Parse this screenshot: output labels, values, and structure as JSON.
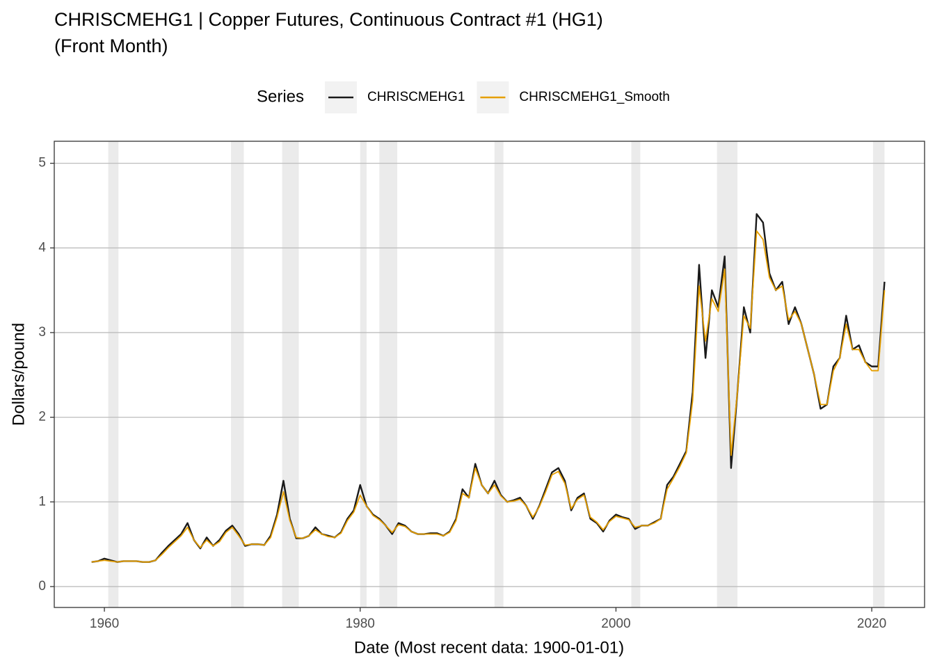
{
  "chart_data": {
    "type": "line",
    "title": [
      "CHRISCMEHG1 | Copper Futures, Continuous Contract #1 (HG1)",
      "(Front Month)"
    ],
    "x_label": "Date (Most recent data: 1900-01-01)",
    "y_label": "Dollars/pound",
    "legend_title": "Series",
    "legend_position": "top",
    "grid": "y",
    "xlim": [
      1956.08,
      2024.13
    ],
    "ylim": [
      -0.247,
      5.26
    ],
    "xticks": [
      1960,
      1980,
      2000,
      2020
    ],
    "yticks": [
      0,
      1,
      2,
      3,
      4,
      5
    ],
    "shaded_regions": [
      [
        1960.3,
        1961.1
      ],
      [
        1969.9,
        1970.9
      ],
      [
        1973.9,
        1975.2
      ],
      [
        1980.0,
        1980.5
      ],
      [
        1981.5,
        1982.9
      ],
      [
        1990.5,
        1991.2
      ],
      [
        2001.2,
        2001.9
      ],
      [
        2007.9,
        2009.5
      ],
      [
        2020.1,
        2021.0
      ]
    ],
    "shaded_color": "#ebebeb",
    "x": [
      1959,
      1959.5,
      1960,
      1960.5,
      1961,
      1961.5,
      1962,
      1962.5,
      1963,
      1963.5,
      1964,
      1964.5,
      1965,
      1965.5,
      1966,
      1966.5,
      1967,
      1967.5,
      1968,
      1968.5,
      1969,
      1969.5,
      1970,
      1970.5,
      1971,
      1971.5,
      1972,
      1972.5,
      1973,
      1973.5,
      1974,
      1974.5,
      1975,
      1975.5,
      1976,
      1976.5,
      1977,
      1977.5,
      1978,
      1978.5,
      1979,
      1979.5,
      1980,
      1980.5,
      1981,
      1981.5,
      1982,
      1982.5,
      1983,
      1983.5,
      1984,
      1984.5,
      1985,
      1985.5,
      1986,
      1986.5,
      1987,
      1987.5,
      1988,
      1988.5,
      1989,
      1989.5,
      1990,
      1990.5,
      1991,
      1991.5,
      1992,
      1992.5,
      1993,
      1993.5,
      1994,
      1994.5,
      1995,
      1995.5,
      1996,
      1996.5,
      1997,
      1997.5,
      1998,
      1998.5,
      1999,
      1999.5,
      2000,
      2000.5,
      2001,
      2001.5,
      2002,
      2002.5,
      2003,
      2003.5,
      2004,
      2004.5,
      2005,
      2005.5,
      2006,
      2006.5,
      2007,
      2007.5,
      2008,
      2008.5,
      2009,
      2009.5,
      2010,
      2010.5,
      2011,
      2011.5,
      2012,
      2012.5,
      2013,
      2013.5,
      2014,
      2014.5,
      2015,
      2015.5,
      2016,
      2016.5,
      2017,
      2017.5,
      2018,
      2018.5,
      2019,
      2019.5,
      2020,
      2020.5,
      2021
    ],
    "series": [
      {
        "name": "CHRISCMEHG1",
        "color": "#1a1a1a",
        "width": 2.4,
        "values": [
          0.29,
          0.3,
          0.33,
          0.31,
          0.29,
          0.3,
          0.3,
          0.3,
          0.29,
          0.29,
          0.31,
          0.4,
          0.48,
          0.55,
          0.62,
          0.75,
          0.55,
          0.45,
          0.58,
          0.48,
          0.55,
          0.66,
          0.72,
          0.62,
          0.48,
          0.5,
          0.5,
          0.49,
          0.6,
          0.85,
          1.25,
          0.8,
          0.57,
          0.57,
          0.6,
          0.7,
          0.62,
          0.6,
          0.58,
          0.64,
          0.8,
          0.9,
          1.2,
          0.95,
          0.85,
          0.8,
          0.72,
          0.62,
          0.75,
          0.72,
          0.65,
          0.62,
          0.62,
          0.63,
          0.63,
          0.6,
          0.65,
          0.8,
          1.15,
          1.05,
          1.45,
          1.2,
          1.1,
          1.25,
          1.08,
          1.0,
          1.02,
          1.05,
          0.95,
          0.8,
          0.95,
          1.15,
          1.35,
          1.4,
          1.25,
          0.9,
          1.05,
          1.1,
          0.8,
          0.75,
          0.65,
          0.78,
          0.85,
          0.82,
          0.8,
          0.68,
          0.72,
          0.72,
          0.76,
          0.8,
          1.2,
          1.3,
          1.45,
          1.6,
          2.3,
          3.8,
          2.7,
          3.5,
          3.3,
          3.9,
          1.4,
          2.3,
          3.3,
          3.0,
          4.4,
          4.3,
          3.7,
          3.5,
          3.6,
          3.1,
          3.3,
          3.1,
          2.8,
          2.5,
          2.1,
          2.15,
          2.6,
          2.7,
          3.2,
          2.8,
          2.85,
          2.65,
          2.6,
          2.6,
          3.6
        ]
      },
      {
        "name": "CHRISCMEHG1_Smooth",
        "color": "#E69F00",
        "width": 1.8,
        "values": [
          0.29,
          0.3,
          0.31,
          0.3,
          0.29,
          0.3,
          0.3,
          0.3,
          0.29,
          0.29,
          0.31,
          0.38,
          0.46,
          0.53,
          0.6,
          0.7,
          0.55,
          0.46,
          0.55,
          0.48,
          0.53,
          0.64,
          0.7,
          0.6,
          0.49,
          0.5,
          0.5,
          0.49,
          0.58,
          0.82,
          1.12,
          0.78,
          0.58,
          0.57,
          0.6,
          0.67,
          0.62,
          0.59,
          0.58,
          0.63,
          0.78,
          0.88,
          1.08,
          0.95,
          0.84,
          0.79,
          0.72,
          0.64,
          0.73,
          0.71,
          0.65,
          0.62,
          0.62,
          0.62,
          0.62,
          0.6,
          0.64,
          0.78,
          1.1,
          1.05,
          1.4,
          1.2,
          1.1,
          1.2,
          1.07,
          1.0,
          1.01,
          1.03,
          0.95,
          0.82,
          0.94,
          1.12,
          1.32,
          1.36,
          1.22,
          0.92,
          1.03,
          1.08,
          0.82,
          0.76,
          0.67,
          0.77,
          0.83,
          0.81,
          0.79,
          0.7,
          0.72,
          0.72,
          0.75,
          0.8,
          1.15,
          1.28,
          1.42,
          1.58,
          2.2,
          3.55,
          2.9,
          3.4,
          3.25,
          3.75,
          1.55,
          2.3,
          3.2,
          3.05,
          4.2,
          4.1,
          3.65,
          3.5,
          3.55,
          3.15,
          3.25,
          3.1,
          2.8,
          2.5,
          2.15,
          2.15,
          2.55,
          2.7,
          3.1,
          2.8,
          2.8,
          2.65,
          2.55,
          2.55,
          3.5
        ]
      }
    ]
  }
}
